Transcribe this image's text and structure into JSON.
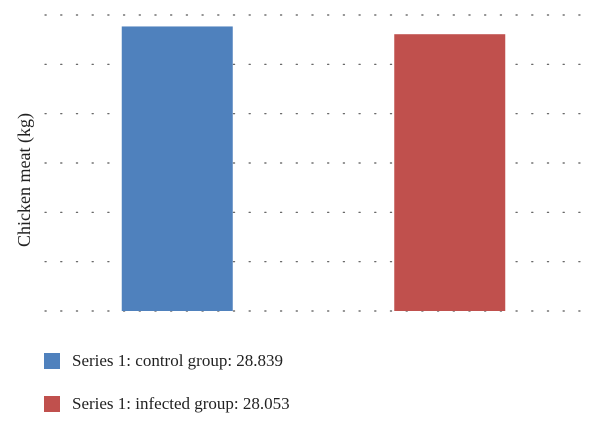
{
  "chart_data": {
    "type": "bar",
    "categories": [
      "control group",
      "infected group"
    ],
    "values": [
      28.839,
      28.053
    ],
    "colors": [
      "#4f81bd",
      "#c0504d"
    ],
    "ylabel": "Chicken meat (kg)",
    "xlabel": "",
    "ylim": [
      0,
      30
    ],
    "grid": true,
    "legend_position": "bottom-left"
  },
  "legend": {
    "items": [
      {
        "label": "Series 1: control group: 28.839",
        "color": "#4f81bd"
      },
      {
        "label": "Series 1: infected group: 28.053",
        "color": "#c0504d"
      }
    ]
  }
}
